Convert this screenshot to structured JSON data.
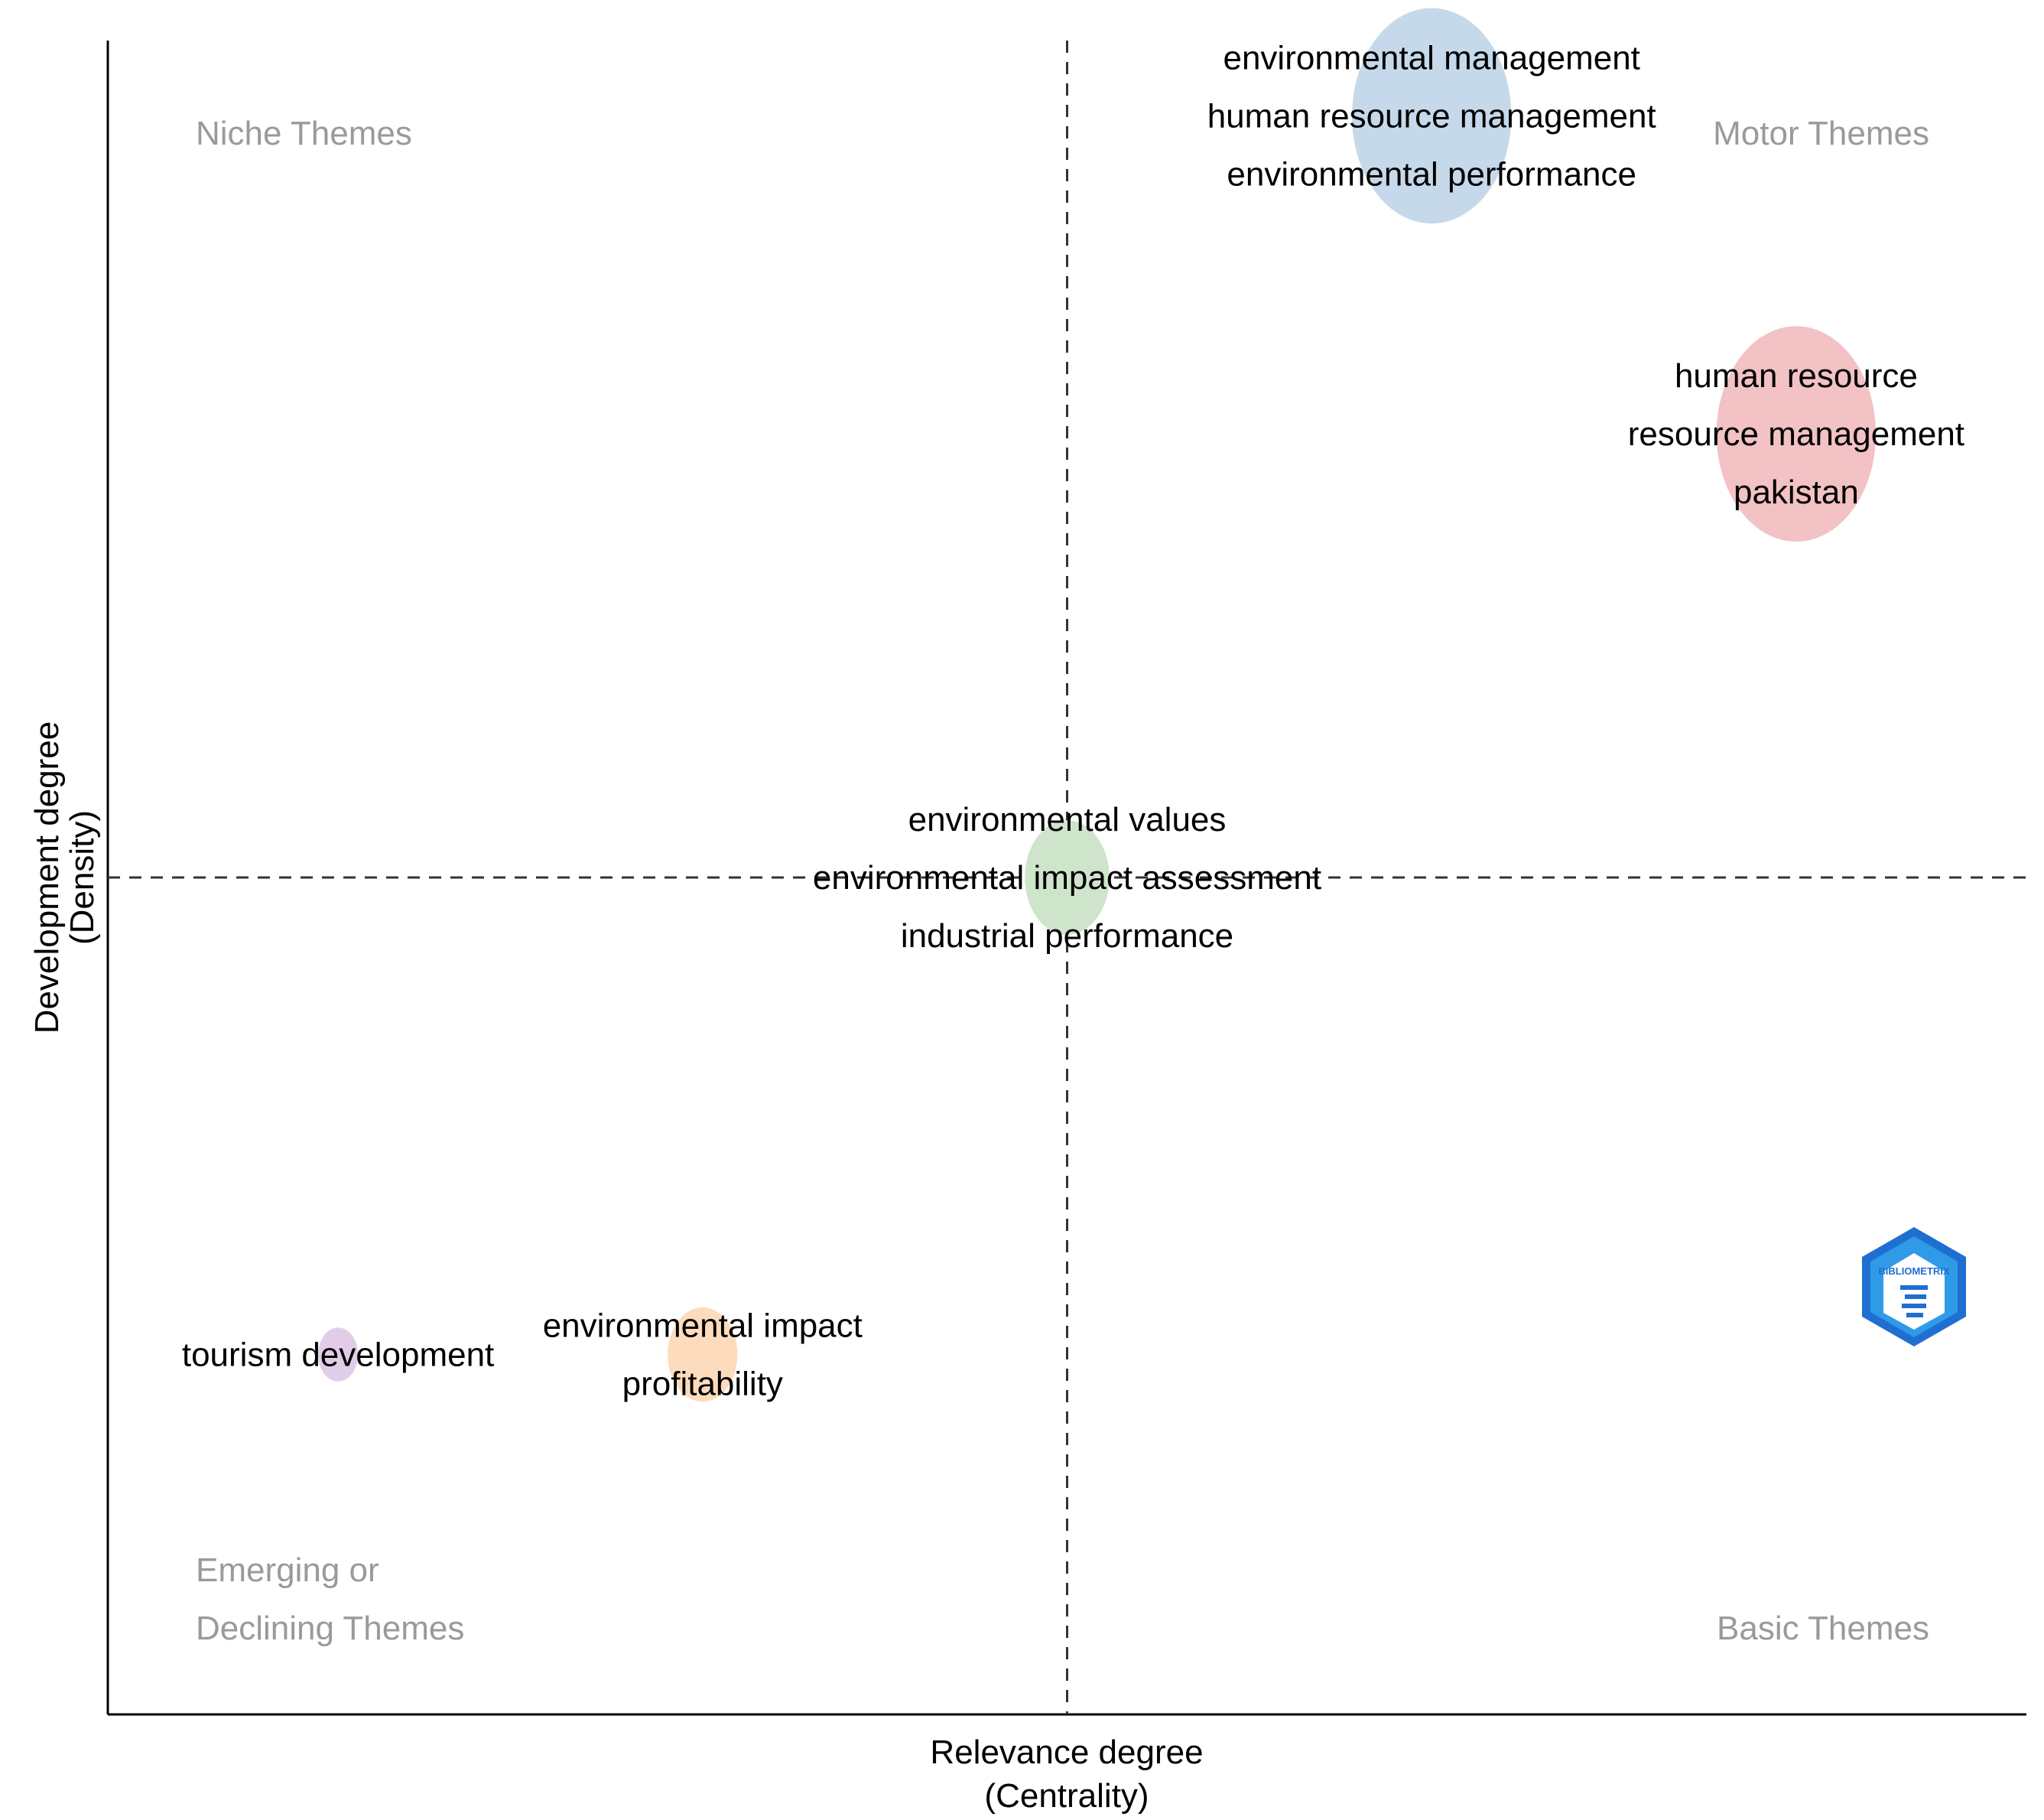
{
  "chart_data": {
    "type": "scatter",
    "subtype": "thematic-map",
    "xlabel": [
      "Relevance degree",
      "(Centrality)"
    ],
    "ylabel": [
      "Development degree",
      "(Density)"
    ],
    "xlim": [
      0,
      100
    ],
    "ylim": [
      0,
      100
    ],
    "x_reference": 50,
    "y_reference": 50,
    "grid": false,
    "quadrants": {
      "top_left": [
        "Niche Themes"
      ],
      "top_right": [
        "Motor Themes"
      ],
      "bottom_left": [
        "Emerging or",
        "Declining Themes"
      ],
      "bottom_right": [
        "Basic Themes"
      ]
    },
    "clusters": [
      {
        "name": "environmental management",
        "x": 69,
        "y": 95.5,
        "size": 0.9,
        "color": "#c6d9ea",
        "labels": [
          "environmental management",
          "human resource management",
          "environmental performance"
        ]
      },
      {
        "name": "human resource",
        "x": 88,
        "y": 76.5,
        "size": 0.9,
        "color": "#f2c2c4",
        "labels": [
          "human resource",
          "resource management",
          "pakistan"
        ]
      },
      {
        "name": "environmental values",
        "x": 50,
        "y": 50,
        "size": 0.4,
        "color": "#cfe5cb",
        "labels": [
          "environmental values",
          "environmental impact assessment",
          "industrial performance"
        ]
      },
      {
        "name": "environmental impact",
        "x": 31,
        "y": 21.5,
        "size": 0.3,
        "color": "#fcdcbd",
        "labels": [
          "environmental impact",
          "profitability"
        ]
      },
      {
        "name": "tourism development",
        "x": 12,
        "y": 21.5,
        "size": 0.1,
        "color": "#e1cde8",
        "labels": [
          "tourism development"
        ]
      }
    ],
    "logo": {
      "name": "bibliometrix-logo",
      "text": "BIBLIOMETRIX",
      "color": "#1f6fd1"
    }
  }
}
